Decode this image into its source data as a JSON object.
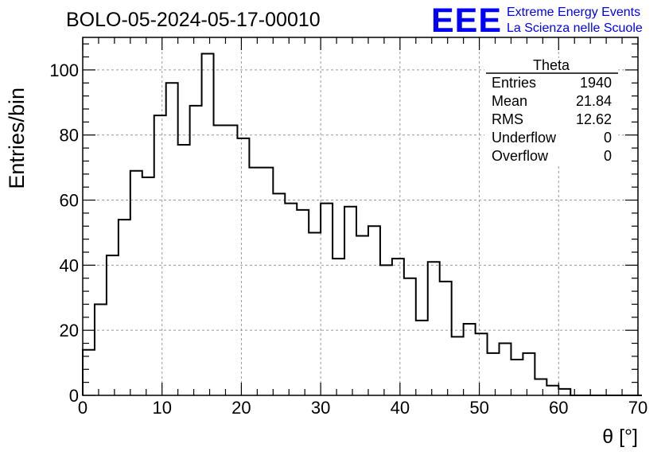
{
  "header": {
    "run_title": "BOLO-05-2024-05-17-00010",
    "logo_text": "EEE",
    "brand_line1": "Extreme Energy Events",
    "brand_line2": "La Scienza nelle Scuole",
    "brand_color": "#0000ff"
  },
  "stats_box": {
    "title": "Theta",
    "rows": [
      {
        "label": "Entries",
        "value": "1940"
      },
      {
        "label": "Mean",
        "value": "21.84"
      },
      {
        "label": "RMS",
        "value": "12.62"
      },
      {
        "label": "Underflow",
        "value": "0"
      },
      {
        "label": "Overflow",
        "value": "0"
      }
    ]
  },
  "chart_data": {
    "type": "histogram",
    "title": "BOLO-05-2024-05-17-00010",
    "xlabel": "θ [°]",
    "ylabel": "Entries/bin",
    "xlim": [
      0,
      70
    ],
    "ylim": [
      0,
      110
    ],
    "x_ticks": [
      0,
      10,
      20,
      30,
      40,
      50,
      60,
      70
    ],
    "y_ticks": [
      0,
      20,
      40,
      60,
      80,
      100
    ],
    "grid": true,
    "bin_width": 1.5,
    "bin_edges_start": 0,
    "values": [
      14,
      28,
      43,
      54,
      69,
      67,
      86,
      96,
      77,
      89,
      105,
      83,
      83,
      79,
      70,
      70,
      62,
      59,
      57,
      50,
      59,
      42,
      58,
      49,
      52,
      40,
      42,
      36,
      23,
      41,
      35,
      18,
      22,
      19,
      13,
      16,
      11,
      13,
      5,
      3,
      2,
      0,
      0,
      0,
      0,
      0,
      0
    ]
  }
}
